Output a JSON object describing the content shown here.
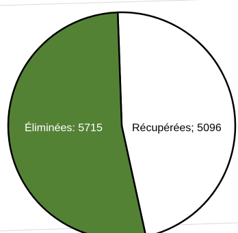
{
  "chart_data": {
    "type": "pie",
    "slices": [
      {
        "label": "Éliminées",
        "value": 5715,
        "data_label": "Éliminées: 5715",
        "color": "#548235",
        "text_color": "#ffffff"
      },
      {
        "label": "Récupérées",
        "value": 5096,
        "data_label": "Récupérées; 5096",
        "color": "#ffffff",
        "text_color": "#000000"
      }
    ],
    "outline_color": "#000000"
  }
}
